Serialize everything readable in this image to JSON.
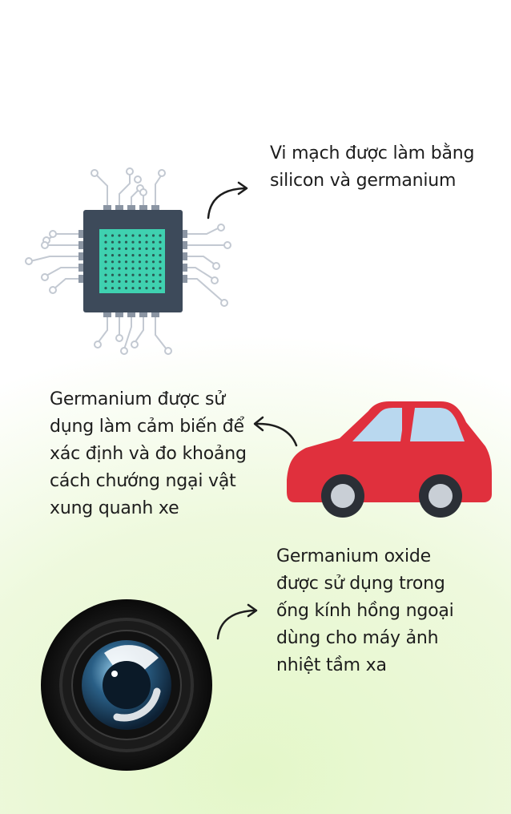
{
  "captions": {
    "chip": {
      "lines": [
        "Vi mạch được làm bằng",
        "silicon và germanium"
      ]
    },
    "car": {
      "lines": [
        "Germanium được sử",
        "dụng làm cảm biến để",
        "xác định và đo khoảng",
        "cách chướng ngại vật",
        "xung quanh xe"
      ]
    },
    "lens": {
      "lines": [
        "Germanium oxide",
        "được sử dụng trong",
        "ống kính hồng ngoại",
        "dùng cho máy ảnh",
        "nhiệt tầm xa"
      ]
    }
  },
  "icons": {
    "chip": "microchip-icon",
    "car": "car-icon",
    "lens": "camera-lens-icon",
    "arrows": "curved-arrow-icon"
  },
  "colors": {
    "chip_body": "#3d4a5a",
    "chip_core": "#3fd1b0",
    "chip_traces": "#c3c9d2",
    "car_body": "#e0303d",
    "car_window": "#b9d8ef",
    "wheel": "#2b2f36",
    "lens_outer": "#141414",
    "lens_glass": "#2a5f86"
  }
}
